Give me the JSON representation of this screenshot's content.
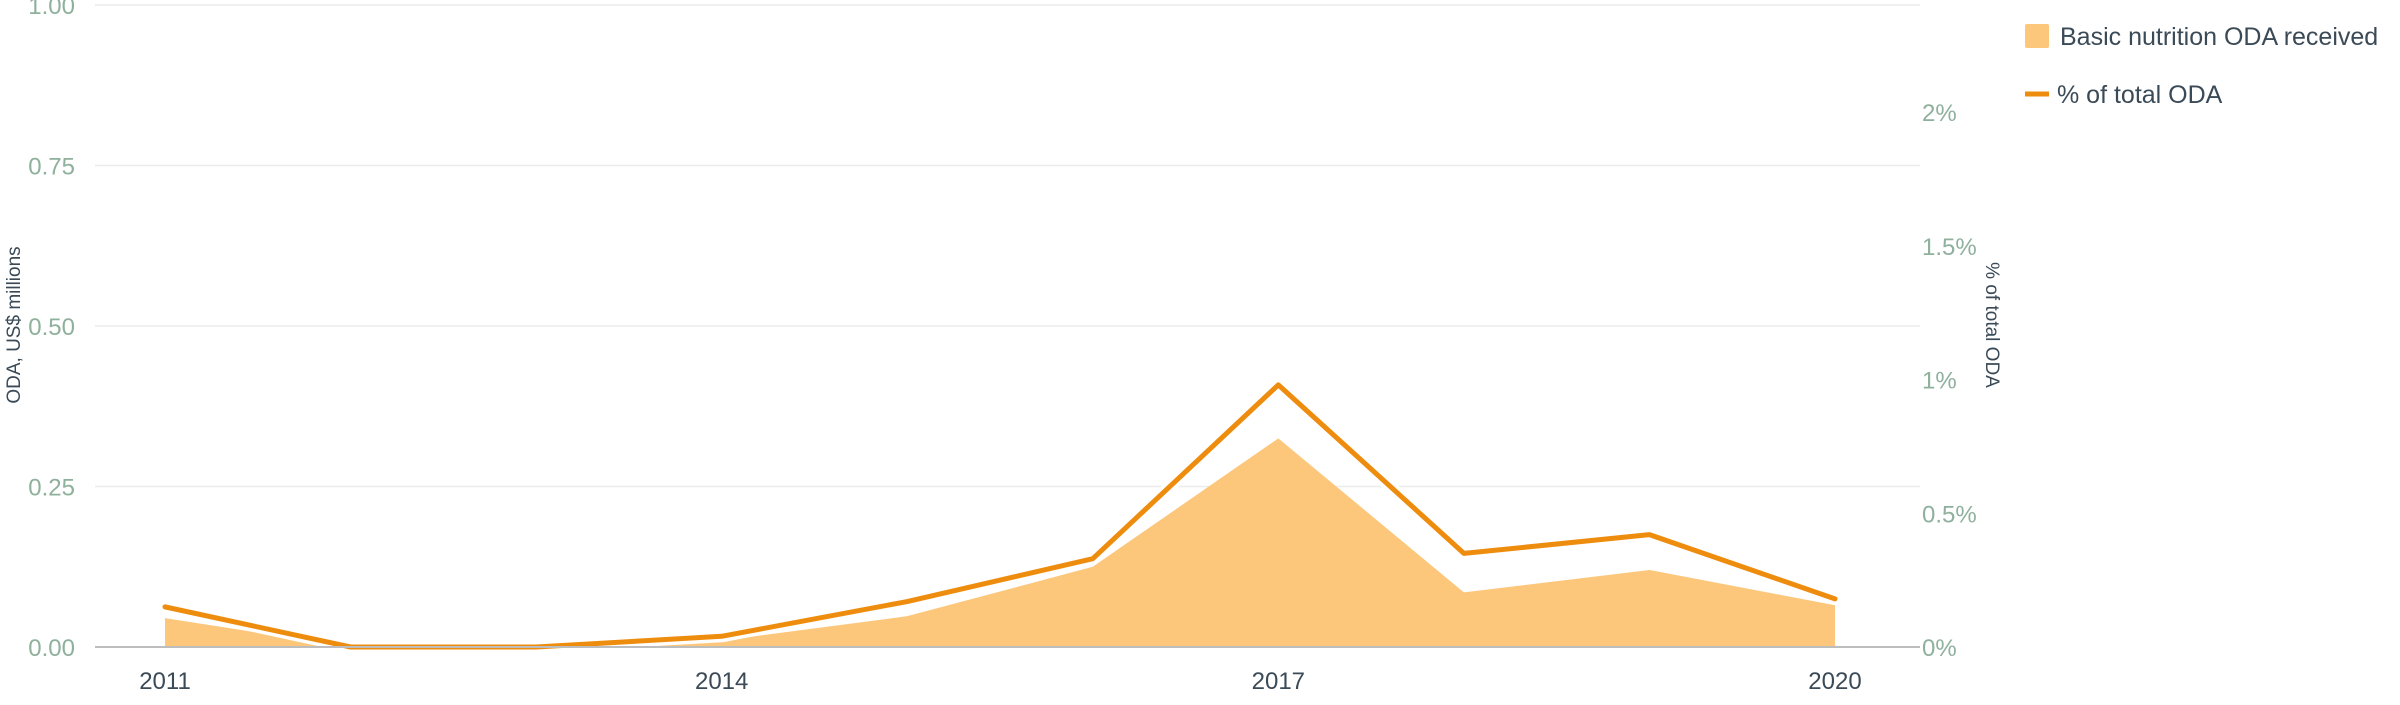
{
  "chart_data": {
    "type": "area",
    "categories": [
      "2011",
      "2012",
      "2013",
      "2014",
      "2015",
      "2016",
      "2017",
      "2018",
      "2019",
      "2020"
    ],
    "x_tick_labels": [
      "2011",
      "2014",
      "2017",
      "2020"
    ],
    "left_axis": {
      "label": "ODA, US$ millions",
      "range": [
        0,
        1.0
      ],
      "ticks": [
        "0.00",
        "0.25",
        "0.50",
        "0.75",
        "1.00"
      ]
    },
    "right_axis": {
      "label": "% of total ODA",
      "range": [
        0,
        2.4
      ],
      "ticks": [
        "0%",
        "0.5%",
        "1%",
        "1.5%",
        "2%"
      ]
    },
    "series": [
      {
        "name": "Basic nutrition ODA received",
        "type": "area",
        "axis": "left",
        "color": "#fcc77b",
        "values": [
          0.045,
          0.0,
          0.0,
          0.01,
          0.048,
          0.125,
          0.325,
          0.085,
          0.12,
          0.065
        ]
      },
      {
        "name": "% of total ODA",
        "type": "line",
        "axis": "right",
        "color": "#ee8c0e",
        "values": [
          0.15,
          0.0,
          0.0,
          0.04,
          0.17,
          0.33,
          0.98,
          0.35,
          0.42,
          0.18
        ]
      }
    ],
    "grid": true,
    "legend_position": "top-right"
  }
}
